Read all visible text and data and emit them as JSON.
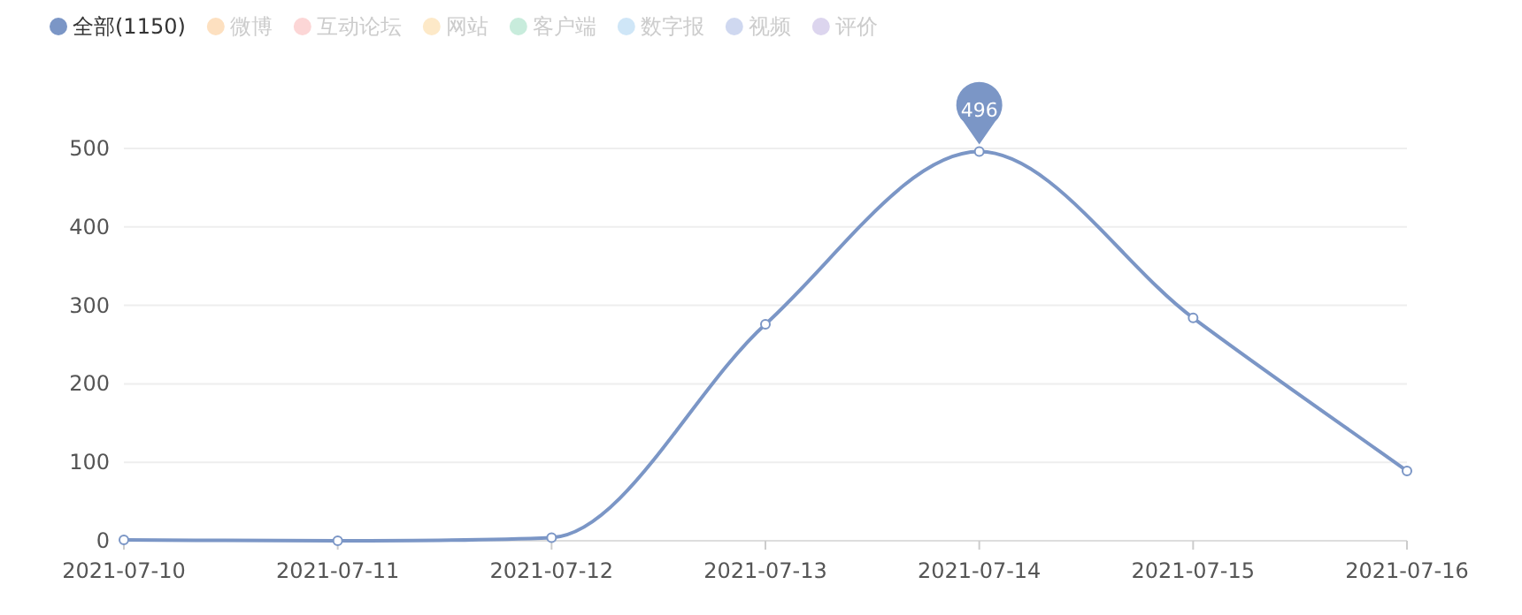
{
  "chart_data": {
    "type": "line",
    "categories": [
      "2021-07-10",
      "2021-07-11",
      "2021-07-12",
      "2021-07-13",
      "2021-07-14",
      "2021-07-15",
      "2021-07-16"
    ],
    "series": [
      {
        "name": "全部(1150)",
        "color": "#7b96c6",
        "values": [
          1,
          0,
          4,
          276,
          496,
          284,
          89
        ]
      },
      {
        "name": "微博",
        "color": "#fde0c0",
        "values": [
          null,
          null,
          null,
          null,
          null,
          null,
          null
        ]
      },
      {
        "name": "互动论坛",
        "color": "#fcd6d6",
        "values": [
          null,
          null,
          null,
          null,
          null,
          null,
          null
        ]
      },
      {
        "name": "网站",
        "color": "#fde9c8",
        "values": [
          null,
          null,
          null,
          null,
          null,
          null,
          null
        ]
      },
      {
        "name": "客户端",
        "color": "#c8ecdc",
        "values": [
          null,
          null,
          null,
          null,
          null,
          null,
          null
        ]
      },
      {
        "name": "数字报",
        "color": "#cfe6f7",
        "values": [
          null,
          null,
          null,
          null,
          null,
          null,
          null
        ]
      },
      {
        "name": "视频",
        "color": "#cfd8f0",
        "values": [
          null,
          null,
          null,
          null,
          null,
          null,
          null
        ]
      },
      {
        "name": "评价",
        "color": "#dcd5ee",
        "values": [
          null,
          null,
          null,
          null,
          null,
          null,
          null
        ]
      }
    ],
    "ylim": [
      0,
      500
    ],
    "yticks": [
      0,
      100,
      200,
      300,
      400,
      500
    ],
    "grid": "y",
    "legend": "top left",
    "marker": "circle",
    "line_style": "solid",
    "annotations": [
      {
        "text": "496",
        "x": "2021-07-14",
        "y": 496
      }
    ]
  }
}
